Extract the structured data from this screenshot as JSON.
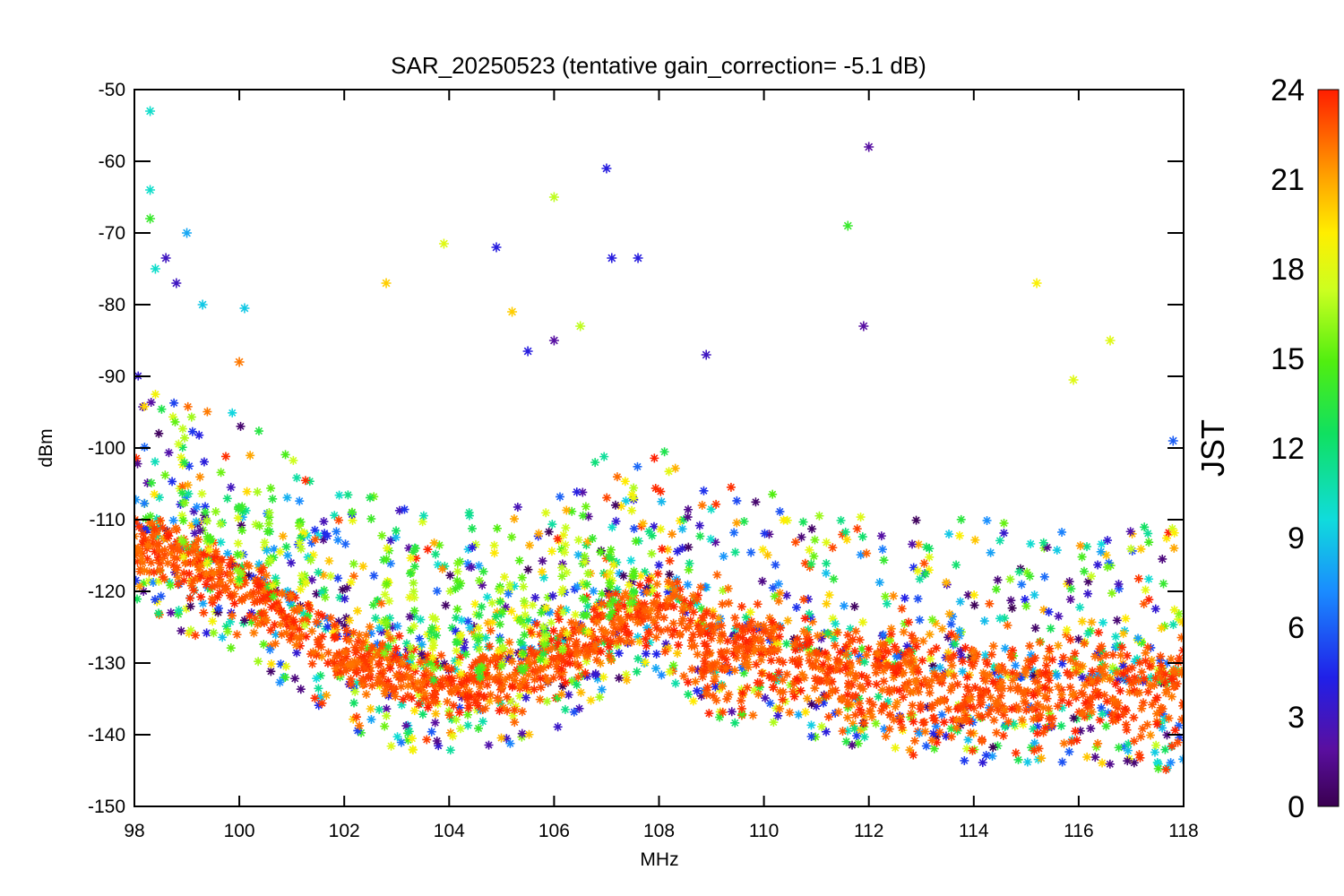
{
  "chart_data": {
    "type": "scatter",
    "title": "SAR_20250523 (tentative gain_correction= -5.1 dB)",
    "xlabel": "MHz",
    "ylabel": "dBm",
    "xlim": [
      98,
      118
    ],
    "ylim": [
      -150,
      -50
    ],
    "xticks": [
      "98",
      "100",
      "102",
      "104",
      "106",
      "108",
      "110",
      "112",
      "114",
      "116",
      "118"
    ],
    "yticks": [
      "-50",
      "-60",
      "-70",
      "-80",
      "-90",
      "-100",
      "-110",
      "-120",
      "-130",
      "-140",
      "-150"
    ],
    "grid": false,
    "marker": "asterisk",
    "colorbar": {
      "label": "JST",
      "range": [
        0,
        24
      ],
      "ticks": [
        "24",
        "21",
        "18",
        "15",
        "12",
        "9",
        "6",
        "3",
        "0"
      ],
      "colormap": "rainbow (purple-blue-cyan-green-yellow-red)"
    },
    "noise_floor": [
      {
        "x": 98,
        "y": -113
      },
      {
        "x": 100,
        "y": -119
      },
      {
        "x": 102,
        "y": -129
      },
      {
        "x": 103,
        "y": -132
      },
      {
        "x": 104,
        "y": -133
      },
      {
        "x": 105,
        "y": -132
      },
      {
        "x": 106,
        "y": -130
      },
      {
        "x": 106.5,
        "y": -127
      },
      {
        "x": 107,
        "y": -124
      },
      {
        "x": 108,
        "y": -122
      },
      {
        "x": 109,
        "y": -128
      },
      {
        "x": 110,
        "y": -129
      },
      {
        "x": 112,
        "y": -132
      },
      {
        "x": 114,
        "y": -134
      },
      {
        "x": 116,
        "y": -134
      },
      {
        "x": 118,
        "y": -135
      }
    ],
    "notable_points": [
      {
        "x": 98.3,
        "y": -53,
        "jst": 10
      },
      {
        "x": 98.3,
        "y": -64,
        "jst": 10
      },
      {
        "x": 98.3,
        "y": -68,
        "jst": 14
      },
      {
        "x": 98.4,
        "y": -75,
        "jst": 10
      },
      {
        "x": 98.6,
        "y": -73.5,
        "jst": 3
      },
      {
        "x": 98.8,
        "y": -77,
        "jst": 3
      },
      {
        "x": 99.0,
        "y": -70,
        "jst": 8
      },
      {
        "x": 99.3,
        "y": -80,
        "jst": 9
      },
      {
        "x": 100.0,
        "y": -88,
        "jst": 22
      },
      {
        "x": 100.1,
        "y": -80.5,
        "jst": 9
      },
      {
        "x": 102.8,
        "y": -77,
        "jst": 20
      },
      {
        "x": 103.9,
        "y": -71.5,
        "jst": 18
      },
      {
        "x": 104.9,
        "y": -72,
        "jst": 4
      },
      {
        "x": 105.2,
        "y": -81,
        "jst": 20
      },
      {
        "x": 105.5,
        "y": -86.5,
        "jst": 4
      },
      {
        "x": 106.0,
        "y": -85,
        "jst": 2
      },
      {
        "x": 106.0,
        "y": -65,
        "jst": 17
      },
      {
        "x": 106.5,
        "y": -83,
        "jst": 17
      },
      {
        "x": 107.0,
        "y": -61,
        "jst": 4
      },
      {
        "x": 107.1,
        "y": -73.5,
        "jst": 4
      },
      {
        "x": 107.6,
        "y": -73.5,
        "jst": 4
      },
      {
        "x": 108.9,
        "y": -87,
        "jst": 3
      },
      {
        "x": 111.6,
        "y": -69,
        "jst": 14
      },
      {
        "x": 111.9,
        "y": -83,
        "jst": 2
      },
      {
        "x": 112.0,
        "y": -58,
        "jst": 2
      },
      {
        "x": 115.2,
        "y": -77,
        "jst": 19
      },
      {
        "x": 115.9,
        "y": -90.5,
        "jst": 18
      },
      {
        "x": 116.6,
        "y": -85,
        "jst": 18
      },
      {
        "x": 117.8,
        "y": -99,
        "jst": 6
      }
    ]
  }
}
